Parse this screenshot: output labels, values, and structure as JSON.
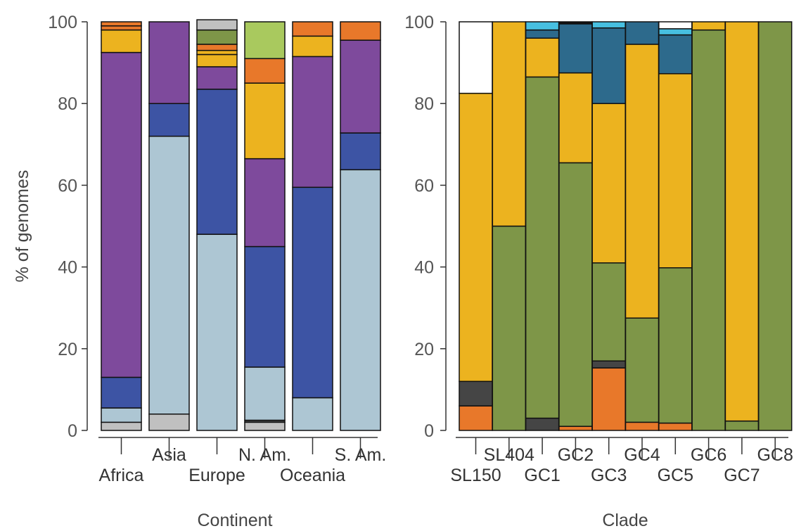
{
  "colors": {
    "white": "#ffffff",
    "lightgray": "#c0c0c0",
    "darkgray": "#454545",
    "lightblue": "#adc6d3",
    "blue": "#3d54a4",
    "purple": "#7e4a9c",
    "olive": "#7e9648",
    "yellow": "#ecb31f",
    "orange": "#e8782a",
    "lightgreen": "#a9c95e",
    "black": "#111111",
    "teal": "#2d6a8c",
    "cyan": "#47bfe0"
  },
  "chart_data": [
    {
      "type": "bar",
      "stacked": true,
      "xlabel": "Continent",
      "ylabel": "% of genomes",
      "ylim": [
        0,
        100
      ],
      "yticks": [
        0,
        20,
        40,
        60,
        80,
        100
      ],
      "grid": false,
      "categories": [
        "Africa",
        "Asia",
        "Europe",
        "N. Am.",
        "Oceania",
        "S. Am."
      ],
      "stacks": [
        [
          {
            "c": "lightgray",
            "v": 2
          },
          {
            "c": "lightblue",
            "v": 3.5
          },
          {
            "c": "blue",
            "v": 7.5
          },
          {
            "c": "purple",
            "v": 79.5
          },
          {
            "c": "yellow",
            "v": 5.5
          },
          {
            "c": "orange",
            "v": 1
          },
          {
            "c": "orange",
            "v": 1
          }
        ],
        [
          {
            "c": "lightgray",
            "v": 4
          },
          {
            "c": "lightblue",
            "v": 68
          },
          {
            "c": "blue",
            "v": 8
          },
          {
            "c": "purple",
            "v": 20
          }
        ],
        [
          {
            "c": "lightblue",
            "v": 48
          },
          {
            "c": "blue",
            "v": 35.5
          },
          {
            "c": "purple",
            "v": 5.5
          },
          {
            "c": "yellow",
            "v": 3
          },
          {
            "c": "yellow",
            "v": 1
          },
          {
            "c": "orange",
            "v": 1.5
          },
          {
            "c": "olive",
            "v": 3.5
          },
          {
            "c": "lightgray",
            "v": 2.5
          }
        ],
        [
          {
            "c": "lightgray",
            "v": 2
          },
          {
            "c": "darkgray",
            "v": 0.5
          },
          {
            "c": "lightblue",
            "v": 13
          },
          {
            "c": "blue",
            "v": 29.5
          },
          {
            "c": "purple",
            "v": 21.5
          },
          {
            "c": "yellow",
            "v": 18.5
          },
          {
            "c": "orange",
            "v": 6
          },
          {
            "c": "lightgreen",
            "v": 9
          }
        ],
        [
          {
            "c": "lightblue",
            "v": 8
          },
          {
            "c": "blue",
            "v": 51.5
          },
          {
            "c": "purple",
            "v": 32
          },
          {
            "c": "yellow",
            "v": 5
          },
          {
            "c": "orange",
            "v": 3.5
          }
        ],
        [
          {
            "c": "lightblue",
            "v": 63.8
          },
          {
            "c": "blue",
            "v": 9
          },
          {
            "c": "purple",
            "v": 22.7
          },
          {
            "c": "orange",
            "v": 4.5
          }
        ]
      ]
    },
    {
      "type": "bar",
      "stacked": true,
      "xlabel": "Clade",
      "ylabel": "",
      "ylim": [
        0,
        100
      ],
      "yticks": [
        0,
        20,
        40,
        60,
        80,
        100
      ],
      "grid": false,
      "categories": [
        "SL150",
        "SL404",
        "GC1",
        "GC2",
        "GC3",
        "GC4",
        "GC5",
        "GC6",
        "GC7",
        "GC8"
      ],
      "stacks": [
        [
          {
            "c": "orange",
            "v": 6
          },
          {
            "c": "darkgray",
            "v": 6
          },
          {
            "c": "yellow",
            "v": 70.5
          },
          {
            "c": "white",
            "v": 17.5
          }
        ],
        [
          {
            "c": "olive",
            "v": 50
          },
          {
            "c": "yellow",
            "v": 50
          }
        ],
        [
          {
            "c": "darkgray",
            "v": 3
          },
          {
            "c": "olive",
            "v": 83.5
          },
          {
            "c": "yellow",
            "v": 9.5
          },
          {
            "c": "teal",
            "v": 2
          },
          {
            "c": "cyan",
            "v": 2
          }
        ],
        [
          {
            "c": "orange",
            "v": 1
          },
          {
            "c": "olive",
            "v": 64.5
          },
          {
            "c": "yellow",
            "v": 22
          },
          {
            "c": "teal",
            "v": 12
          },
          {
            "c": "black",
            "v": 0.5
          }
        ],
        [
          {
            "c": "orange",
            "v": 15.3
          },
          {
            "c": "darkgray",
            "v": 1.7
          },
          {
            "c": "olive",
            "v": 24
          },
          {
            "c": "yellow",
            "v": 39
          },
          {
            "c": "teal",
            "v": 18.5
          },
          {
            "c": "cyan",
            "v": 1.5
          }
        ],
        [
          {
            "c": "orange",
            "v": 2
          },
          {
            "c": "olive",
            "v": 25.5
          },
          {
            "c": "yellow",
            "v": 67
          },
          {
            "c": "teal",
            "v": 5.5
          }
        ],
        [
          {
            "c": "orange",
            "v": 1.8
          },
          {
            "c": "olive",
            "v": 38
          },
          {
            "c": "yellow",
            "v": 47.5
          },
          {
            "c": "teal",
            "v": 9.5
          },
          {
            "c": "cyan",
            "v": 1.5
          },
          {
            "c": "white",
            "v": 1.7
          }
        ],
        [
          {
            "c": "olive",
            "v": 98
          },
          {
            "c": "yellow",
            "v": 2
          }
        ],
        [
          {
            "c": "olive",
            "v": 2.3
          },
          {
            "c": "yellow",
            "v": 97.7
          }
        ],
        [
          {
            "c": "olive",
            "v": 100
          }
        ]
      ]
    }
  ]
}
